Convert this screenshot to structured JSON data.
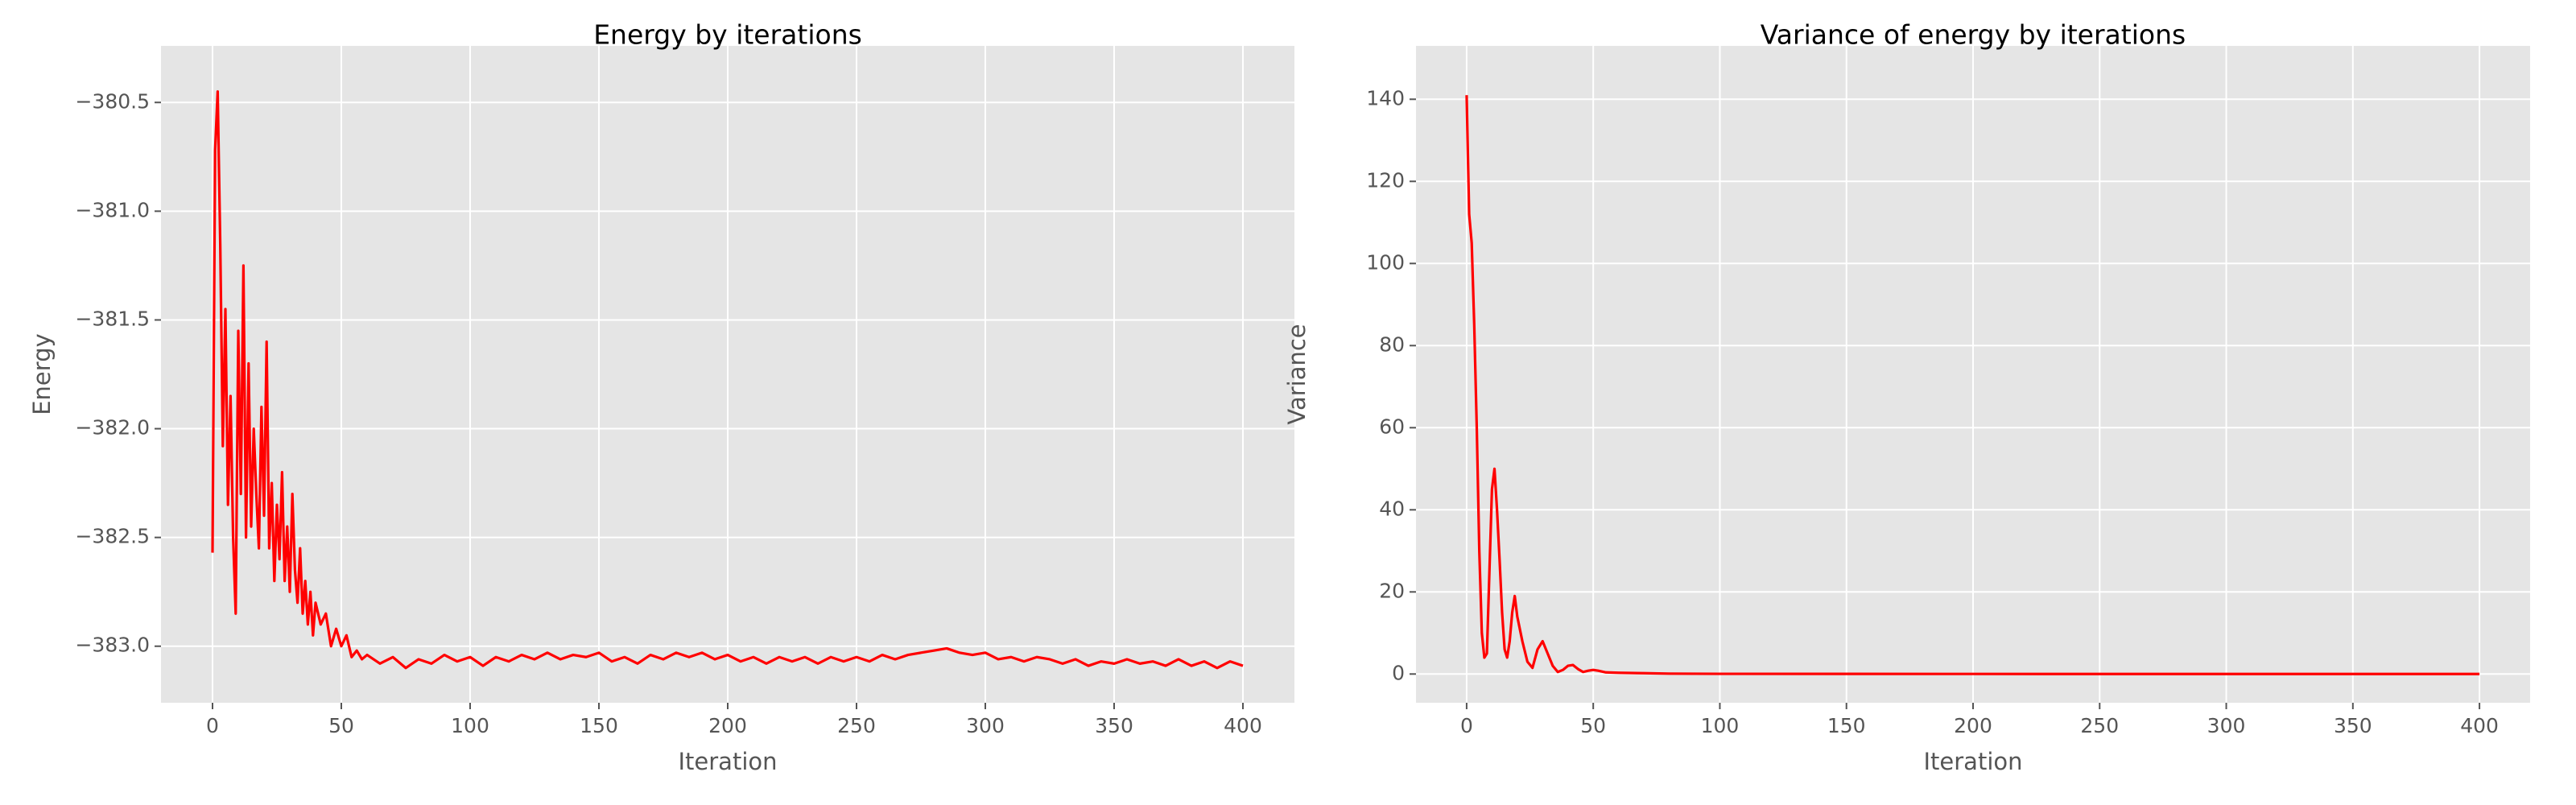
{
  "chart_data": [
    {
      "type": "line",
      "title": "Energy by iterations",
      "xlabel": "Iteration",
      "ylabel": "Energy",
      "color": "#ff0000",
      "grid": true,
      "x": [
        0,
        1,
        2,
        3,
        4,
        5,
        6,
        7,
        8,
        9,
        10,
        11,
        12,
        13,
        14,
        15,
        16,
        17,
        18,
        19,
        20,
        21,
        22,
        23,
        24,
        25,
        26,
        27,
        28,
        29,
        30,
        31,
        32,
        33,
        34,
        35,
        36,
        37,
        38,
        39,
        40,
        42,
        44,
        46,
        48,
        50,
        52,
        54,
        56,
        58,
        60,
        65,
        70,
        75,
        80,
        85,
        90,
        95,
        100,
        105,
        110,
        115,
        120,
        125,
        130,
        135,
        140,
        145,
        150,
        155,
        160,
        165,
        170,
        175,
        180,
        185,
        190,
        195,
        200,
        205,
        210,
        215,
        220,
        225,
        230,
        235,
        240,
        245,
        250,
        255,
        260,
        265,
        270,
        275,
        280,
        285,
        290,
        295,
        300,
        305,
        310,
        315,
        320,
        325,
        330,
        335,
        340,
        345,
        350,
        355,
        360,
        365,
        370,
        375,
        380,
        385,
        390,
        395,
        400
      ],
      "values": [
        -382.57,
        -380.72,
        -380.45,
        -381.15,
        -382.08,
        -381.45,
        -382.35,
        -381.85,
        -382.5,
        -382.85,
        -381.55,
        -382.3,
        -381.25,
        -382.5,
        -381.7,
        -382.45,
        -382.0,
        -382.3,
        -382.55,
        -381.9,
        -382.4,
        -381.6,
        -382.55,
        -382.25,
        -382.7,
        -382.35,
        -382.6,
        -382.2,
        -382.7,
        -382.45,
        -382.75,
        -382.3,
        -382.65,
        -382.8,
        -382.55,
        -382.85,
        -382.7,
        -382.9,
        -382.75,
        -382.95,
        -382.8,
        -382.9,
        -382.85,
        -383.0,
        -382.92,
        -383.0,
        -382.95,
        -383.05,
        -383.02,
        -383.06,
        -383.04,
        -383.08,
        -383.05,
        -383.1,
        -383.06,
        -383.08,
        -383.04,
        -383.07,
        -383.05,
        -383.09,
        -383.05,
        -383.07,
        -383.04,
        -383.06,
        -383.03,
        -383.06,
        -383.04,
        -383.05,
        -383.03,
        -383.07,
        -383.05,
        -383.08,
        -383.04,
        -383.06,
        -383.03,
        -383.05,
        -383.03,
        -383.06,
        -383.04,
        -383.07,
        -383.05,
        -383.08,
        -383.05,
        -383.07,
        -383.05,
        -383.08,
        -383.05,
        -383.07,
        -383.05,
        -383.07,
        -383.04,
        -383.06,
        -383.04,
        -383.03,
        -383.02,
        -383.01,
        -383.03,
        -383.04,
        -383.03,
        -383.06,
        -383.05,
        -383.07,
        -383.05,
        -383.06,
        -383.08,
        -383.06,
        -383.09,
        -383.07,
        -383.08,
        -383.06,
        -383.08,
        -383.07,
        -383.09,
        -383.06,
        -383.09,
        -383.07,
        -383.1,
        -383.07,
        -383.09
      ],
      "xlim": [
        -20,
        420
      ],
      "xticks": [
        0,
        50,
        100,
        150,
        200,
        250,
        300,
        350,
        400
      ],
      "ylim": [
        -383.26,
        -380.24
      ],
      "yticks": [
        {
          "value": -383.0,
          "label": "−383.0"
        },
        {
          "value": -382.5,
          "label": "−382.5"
        },
        {
          "value": -382.0,
          "label": "−382.0"
        },
        {
          "value": -381.5,
          "label": "−381.5"
        },
        {
          "value": -381.0,
          "label": "−381.0"
        },
        {
          "value": -380.5,
          "label": "−380.5"
        }
      ]
    },
    {
      "type": "line",
      "title": "Variance of energy by iterations",
      "xlabel": "Iteration",
      "ylabel": "Variance",
      "color": "#ff0000",
      "grid": true,
      "x": [
        0,
        1,
        2,
        3,
        4,
        5,
        6,
        7,
        8,
        9,
        10,
        11,
        12,
        13,
        14,
        15,
        16,
        17,
        18,
        19,
        20,
        22,
        24,
        26,
        28,
        30,
        32,
        34,
        36,
        38,
        40,
        42,
        44,
        46,
        48,
        50,
        52,
        55,
        60,
        70,
        80,
        100,
        150,
        200,
        250,
        300,
        350,
        400
      ],
      "values": [
        141,
        112,
        105,
        85,
        60,
        30,
        10,
        4,
        5,
        25,
        45,
        50,
        40,
        28,
        15,
        6,
        4,
        8,
        15,
        19,
        14,
        8,
        3,
        1.5,
        6,
        8,
        5,
        2,
        0.5,
        1,
        2,
        2.2,
        1.2,
        0.5,
        0.8,
        1,
        0.8,
        0.4,
        0.3,
        0.2,
        0.1,
        0.05,
        0.03,
        0.02,
        0.01,
        0.01,
        0.01,
        0.01
      ],
      "xlim": [
        -20,
        420
      ],
      "xticks": [
        0,
        50,
        100,
        150,
        200,
        250,
        300,
        350,
        400
      ],
      "ylim": [
        -7,
        153
      ],
      "yticks": [
        0,
        20,
        40,
        60,
        80,
        100,
        120,
        140
      ]
    }
  ]
}
